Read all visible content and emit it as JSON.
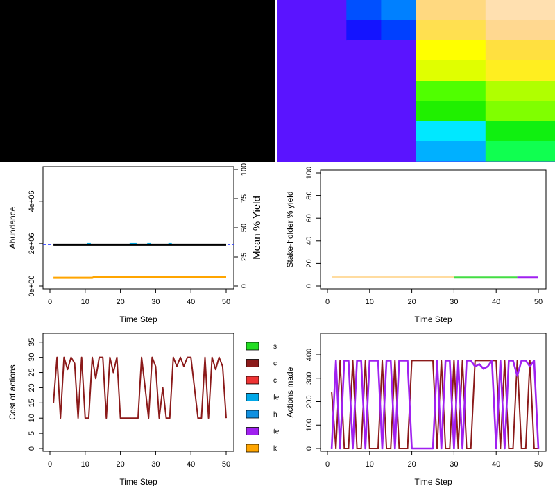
{
  "colors": {
    "black_panel": "#000000",
    "mosaic_base": "#5a14ff",
    "flat_line": "#000000",
    "dashed_ref": "#3344ff",
    "orange": "#ffa500",
    "cyan_marks": "#00a0d8",
    "cost_line": "#8b1a1a",
    "actions_purple": "#a020f0",
    "actions_red": "#8b1a1a",
    "yield_tan": "#ffdca0",
    "yield_green": "#44dd44",
    "yield_purple": "#a020f0"
  },
  "mosaic": {
    "cells": [
      {
        "col": 0,
        "row": 0,
        "w": 2,
        "h": 4,
        "color": "#5a14ff"
      },
      {
        "col": 2,
        "row": 0,
        "w": 1,
        "h": 1,
        "color": "#0050ff"
      },
      {
        "col": 3,
        "row": 0,
        "w": 1,
        "h": 1,
        "color": "#0080ff"
      },
      {
        "col": 4,
        "row": 0,
        "w": 2,
        "h": 1,
        "color": "#ffd980"
      },
      {
        "col": 6,
        "row": 0,
        "w": 2,
        "h": 1,
        "color": "#ffe0b0"
      },
      {
        "col": 2,
        "row": 1,
        "w": 1,
        "h": 1,
        "color": "#1414ff"
      },
      {
        "col": 3,
        "row": 1,
        "w": 1,
        "h": 1,
        "color": "#0040ff"
      },
      {
        "col": 4,
        "row": 1,
        "w": 2,
        "h": 1,
        "color": "#ffe050"
      },
      {
        "col": 6,
        "row": 1,
        "w": 2,
        "h": 1,
        "color": "#ffd890"
      },
      {
        "col": 2,
        "row": 2,
        "w": 2,
        "h": 2,
        "color": "#5a14ff"
      },
      {
        "col": 4,
        "row": 2,
        "w": 2,
        "h": 1,
        "color": "#ffff00"
      },
      {
        "col": 6,
        "row": 2,
        "w": 2,
        "h": 1,
        "color": "#ffe040"
      },
      {
        "col": 4,
        "row": 3,
        "w": 2,
        "h": 1,
        "color": "#e0ff00"
      },
      {
        "col": 6,
        "row": 3,
        "w": 2,
        "h": 1,
        "color": "#ffee20"
      },
      {
        "col": 0,
        "row": 4,
        "w": 4,
        "h": 4,
        "color": "#5a14ff"
      },
      {
        "col": 4,
        "row": 4,
        "w": 2,
        "h": 1,
        "color": "#50ff00"
      },
      {
        "col": 6,
        "row": 4,
        "w": 2,
        "h": 1,
        "color": "#b0ff00"
      },
      {
        "col": 4,
        "row": 5,
        "w": 2,
        "h": 1,
        "color": "#20f000"
      },
      {
        "col": 6,
        "row": 5,
        "w": 2,
        "h": 1,
        "color": "#80ff00"
      },
      {
        "col": 4,
        "row": 6,
        "w": 2,
        "h": 1,
        "color": "#00e8ff"
      },
      {
        "col": 6,
        "row": 6,
        "w": 2,
        "h": 1,
        "color": "#10f010"
      },
      {
        "col": 4,
        "row": 7,
        "w": 2,
        "h": 1,
        "color": "#00b0ff"
      },
      {
        "col": 6,
        "row": 7,
        "w": 2,
        "h": 1,
        "color": "#10ff50"
      }
    ]
  },
  "chart_data": [
    {
      "id": "abundance",
      "type": "line",
      "xlabel": "Time Step",
      "ylabel": "Abundance",
      "ylabel_right": "Mean % Yield",
      "xlim": [
        0,
        50
      ],
      "ylim": [
        0,
        5500000
      ],
      "x_ticks": [
        "0",
        "10",
        "20",
        "30",
        "40",
        "50"
      ],
      "y_ticks": [
        "0e+00",
        "2e+06",
        "4e+06"
      ],
      "y_ticks_right": [
        "0",
        "25",
        "50",
        "75",
        "100"
      ],
      "ylim_right": [
        0,
        100
      ],
      "series": [
        {
          "x": [
            1,
            50
          ],
          "values": [
            1950000,
            1950000
          ],
          "color": "#000000"
        },
        {
          "x": [
            1,
            12,
            12.5,
            50
          ],
          "values": [
            390000,
            390000,
            420000,
            420000
          ],
          "color": "#ffa500"
        }
      ],
      "reference_y": 1950000,
      "marks_x": [
        11,
        23,
        24,
        28,
        34
      ]
    },
    {
      "id": "stakeholder",
      "type": "line",
      "xlabel": "Time Step",
      "ylabel": "Stake-holder % yield",
      "xlim": [
        0,
        50
      ],
      "ylim": [
        0,
        100
      ],
      "x_ticks": [
        "0",
        "10",
        "20",
        "30",
        "40",
        "50"
      ],
      "y_ticks": [
        "0",
        "20",
        "40",
        "60",
        "80",
        "100"
      ],
      "series": [
        {
          "x": [
            1,
            30
          ],
          "values": [
            8,
            8
          ],
          "color": "#ffdca0"
        },
        {
          "x": [
            30,
            45
          ],
          "values": [
            7.5,
            7.5
          ],
          "color": "#44dd44"
        },
        {
          "x": [
            45,
            50
          ],
          "values": [
            7.5,
            7.5
          ],
          "color": "#a020f0"
        }
      ]
    },
    {
      "id": "cost",
      "type": "line",
      "xlabel": "Time Step",
      "ylabel": "Cost of actions",
      "xlim": [
        0,
        50
      ],
      "ylim": [
        0,
        37
      ],
      "x_ticks": [
        "0",
        "10",
        "20",
        "30",
        "40",
        "50"
      ],
      "y_ticks": [
        "0",
        "5",
        "10",
        "15",
        "20",
        "25",
        "30",
        "35"
      ],
      "series": [
        {
          "x": [
            1,
            2,
            3,
            4,
            5,
            6,
            7,
            8,
            9,
            10,
            11,
            12,
            13,
            14,
            15,
            16,
            17,
            18,
            19,
            20,
            21,
            22,
            23,
            24,
            25,
            26,
            27,
            28,
            29,
            30,
            31,
            32,
            33,
            34,
            35,
            36,
            37,
            38,
            39,
            40,
            41,
            42,
            43,
            44,
            45,
            46,
            47,
            48,
            49,
            50
          ],
          "values": [
            15,
            30,
            10,
            30,
            26,
            30,
            28,
            10,
            30,
            10,
            10,
            30,
            23,
            30,
            30,
            10,
            30,
            25,
            30,
            10,
            10,
            10,
            10,
            10,
            10,
            30,
            20,
            10,
            30,
            27,
            10,
            20,
            10,
            10,
            30,
            27,
            30,
            27,
            30,
            30,
            20,
            10,
            10,
            30,
            10,
            30,
            26,
            30,
            27,
            10
          ],
          "color": "#8b1a1a"
        }
      ]
    },
    {
      "id": "actions",
      "type": "line",
      "xlabel": "Time Step",
      "ylabel": "Actions made",
      "xlim": [
        0,
        50
      ],
      "ylim": [
        0,
        480
      ],
      "x_ticks": [
        "0",
        "10",
        "20",
        "30",
        "40",
        "50"
      ],
      "y_ticks": [
        "0",
        "100",
        "200",
        "300",
        "400"
      ],
      "series": [
        {
          "x": [
            1,
            2,
            3,
            4,
            5,
            6,
            7,
            8,
            9,
            10,
            11,
            12,
            13,
            14,
            15,
            16,
            17,
            18,
            19,
            20,
            21,
            22,
            23,
            24,
            25,
            26,
            27,
            28,
            29,
            30,
            31,
            32,
            33,
            34,
            35,
            36,
            37,
            38,
            39,
            40,
            41,
            42,
            43,
            44,
            45,
            46,
            47,
            48,
            49,
            50
          ],
          "values": [
            240,
            0,
            375,
            0,
            0,
            375,
            0,
            0,
            375,
            0,
            0,
            0,
            375,
            0,
            0,
            375,
            0,
            0,
            0,
            375,
            375,
            375,
            375,
            375,
            375,
            0,
            375,
            0,
            0,
            375,
            0,
            375,
            0,
            0,
            375,
            375,
            375,
            375,
            375,
            375,
            0,
            375,
            0,
            0,
            375,
            0,
            0,
            375,
            0,
            0
          ],
          "color": "#8b1a1a"
        },
        {
          "x": [
            1,
            2,
            3,
            4,
            5,
            6,
            7,
            8,
            9,
            10,
            11,
            12,
            13,
            14,
            15,
            16,
            17,
            18,
            19,
            20,
            21,
            22,
            23,
            24,
            25,
            26,
            27,
            28,
            29,
            30,
            31,
            32,
            33,
            34,
            35,
            36,
            37,
            38,
            39,
            40,
            41,
            42,
            43,
            44,
            45,
            46,
            47,
            48,
            49,
            50
          ],
          "values": [
            0,
            375,
            0,
            375,
            375,
            0,
            375,
            375,
            0,
            375,
            375,
            375,
            0,
            375,
            375,
            0,
            375,
            375,
            375,
            0,
            0,
            0,
            0,
            0,
            0,
            375,
            0,
            375,
            375,
            0,
            375,
            0,
            375,
            375,
            350,
            360,
            340,
            350,
            375,
            0,
            375,
            0,
            375,
            375,
            310,
            375,
            375,
            350,
            375,
            0
          ],
          "color": "#a020f0"
        }
      ]
    }
  ],
  "legend": {
    "items": [
      {
        "label": "s",
        "color": "#22dd22"
      },
      {
        "label": "c",
        "color": "#8b1a1a"
      },
      {
        "label": "c",
        "color": "#ee3333"
      },
      {
        "label": "fe",
        "color": "#00a8e8"
      },
      {
        "label": "h",
        "color": "#1090e0"
      },
      {
        "label": "te",
        "color": "#a020f0"
      },
      {
        "label": "k",
        "color": "#ffa500"
      }
    ]
  }
}
